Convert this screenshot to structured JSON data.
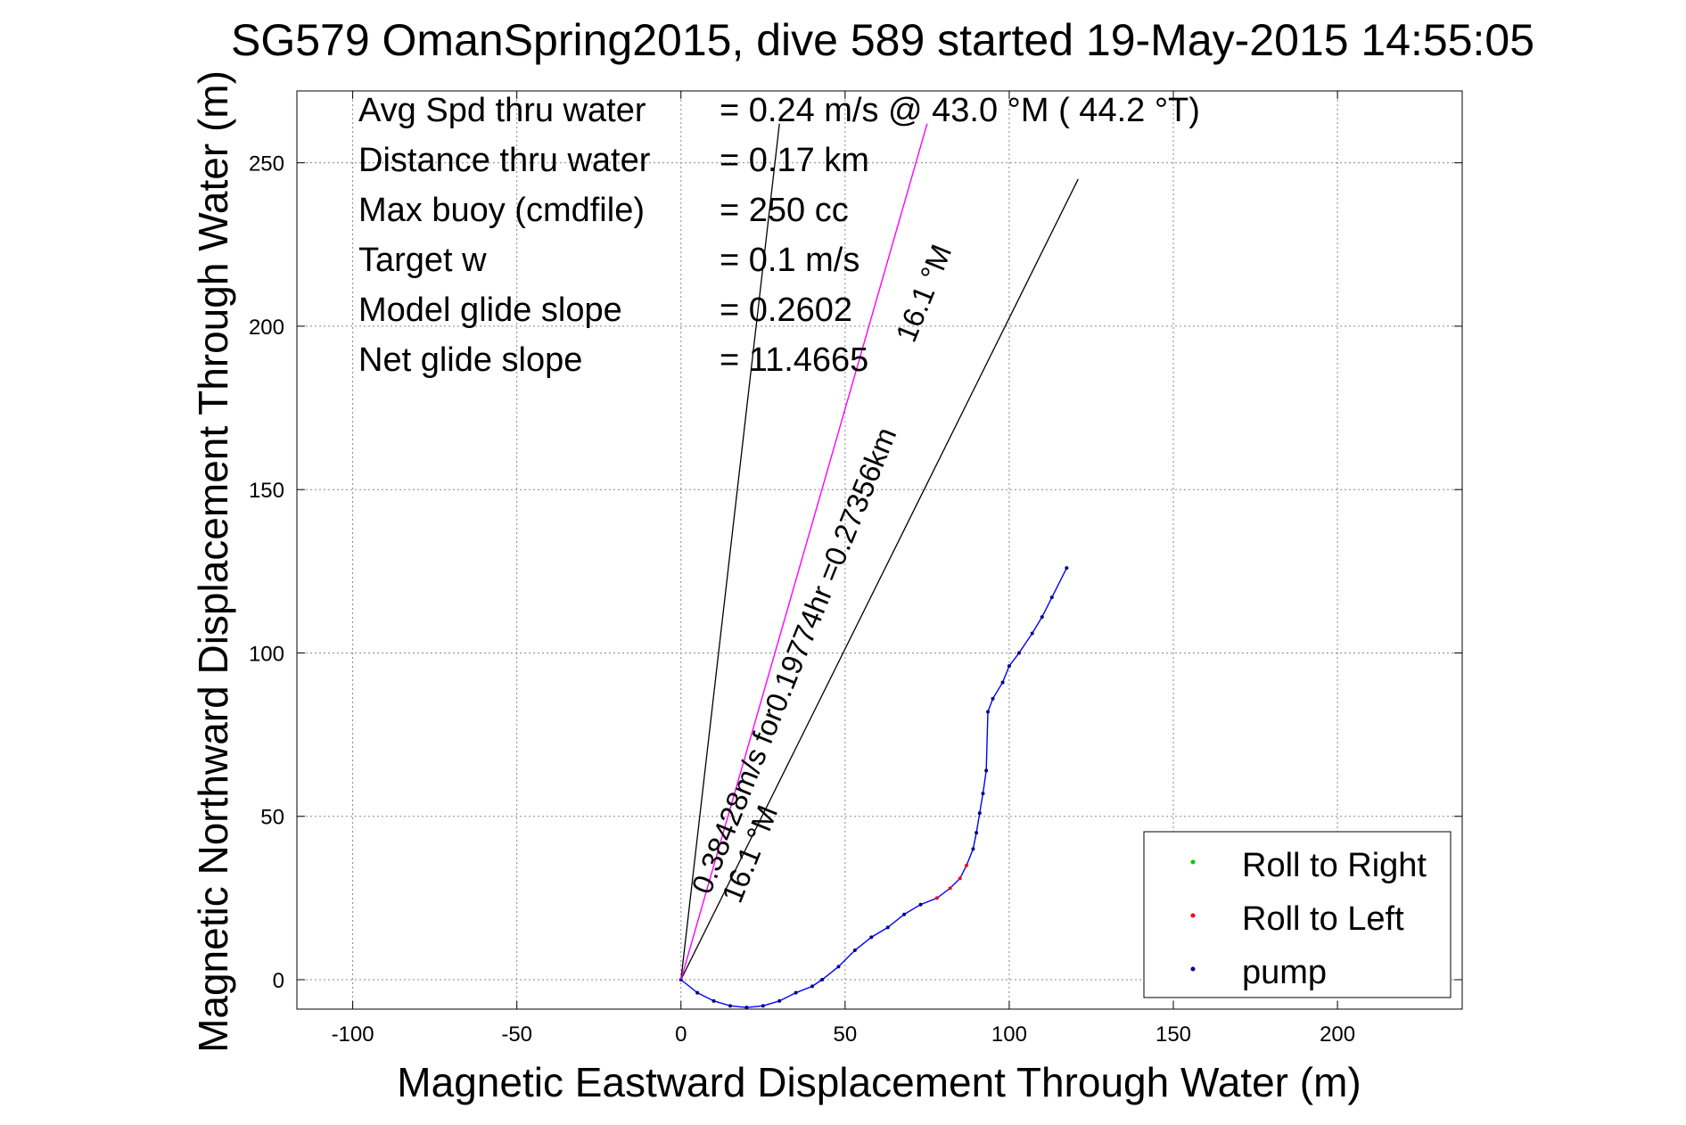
{
  "chart_data": {
    "type": "line",
    "title": "SG579 OmanSpring2015, dive 589 started 19-May-2015 14:55:05",
    "xlabel": "Magnetic Eastward Displacement Through Water (m)",
    "ylabel": "Magnetic Northward Displacement Through Water (m)",
    "xlim": [
      -117,
      238
    ],
    "ylim": [
      -9,
      272
    ],
    "xticks": [
      -100,
      -50,
      0,
      50,
      100,
      150,
      200
    ],
    "yticks": [
      0,
      50,
      100,
      150,
      200,
      250
    ],
    "grid": true,
    "legend_position": "bottom-right",
    "legend": [
      {
        "label": "Roll to Right",
        "color": "#00cc00"
      },
      {
        "label": "Roll to Left",
        "color": "#ff0000"
      },
      {
        "label": "pump",
        "color": "#000080"
      }
    ],
    "info_lines": [
      {
        "label": "Avg Spd thru water",
        "value": "=  0.24 m/s @  43.0 °M ( 44.2 °T)"
      },
      {
        "label": "Distance thru water",
        "value": "=  0.17 km"
      },
      {
        "label": "Max buoy (cmdfile)",
        "value": "= 250 cc"
      },
      {
        "label": "Target w",
        "value": "= 0.1 m/s"
      },
      {
        "label": "Model glide slope",
        "value": "= 0.2602"
      },
      {
        "label": "Net glide slope",
        "value": "= 11.4665"
      }
    ],
    "annotations": {
      "current_label": "0.38428m/s for0.19774hr =0.27356km",
      "heading_label_1": "16.1 °M",
      "heading_label_2": "16.1 °M"
    },
    "series": [
      {
        "name": "track",
        "color": "#0000ff",
        "x": [
          0,
          5,
          10,
          15,
          20,
          25,
          30,
          35,
          40,
          43,
          48,
          53,
          58,
          63,
          68,
          73,
          78,
          82,
          85,
          87,
          89,
          90,
          91,
          92,
          93,
          93.5,
          95,
          98,
          100,
          103,
          107,
          110,
          113,
          117.5
        ],
        "y": [
          0,
          -4,
          -6.5,
          -8,
          -8.5,
          -8,
          -6.5,
          -4,
          -2,
          0,
          4,
          9,
          13,
          16,
          20,
          23,
          25,
          28,
          31,
          35,
          40,
          45,
          51,
          57,
          64,
          82,
          86,
          91,
          96,
          100,
          106,
          111,
          117,
          126
        ]
      },
      {
        "name": "current",
        "color": "#ff00ff",
        "x": [
          0,
          75
        ],
        "y": [
          0,
          262
        ]
      }
    ],
    "reference_lines": [
      {
        "color": "#000000",
        "x": [
          0,
          30
        ],
        "y": [
          0,
          262
        ]
      },
      {
        "color": "#000000",
        "x": [
          0,
          121
        ],
        "y": [
          0,
          245
        ]
      }
    ]
  }
}
